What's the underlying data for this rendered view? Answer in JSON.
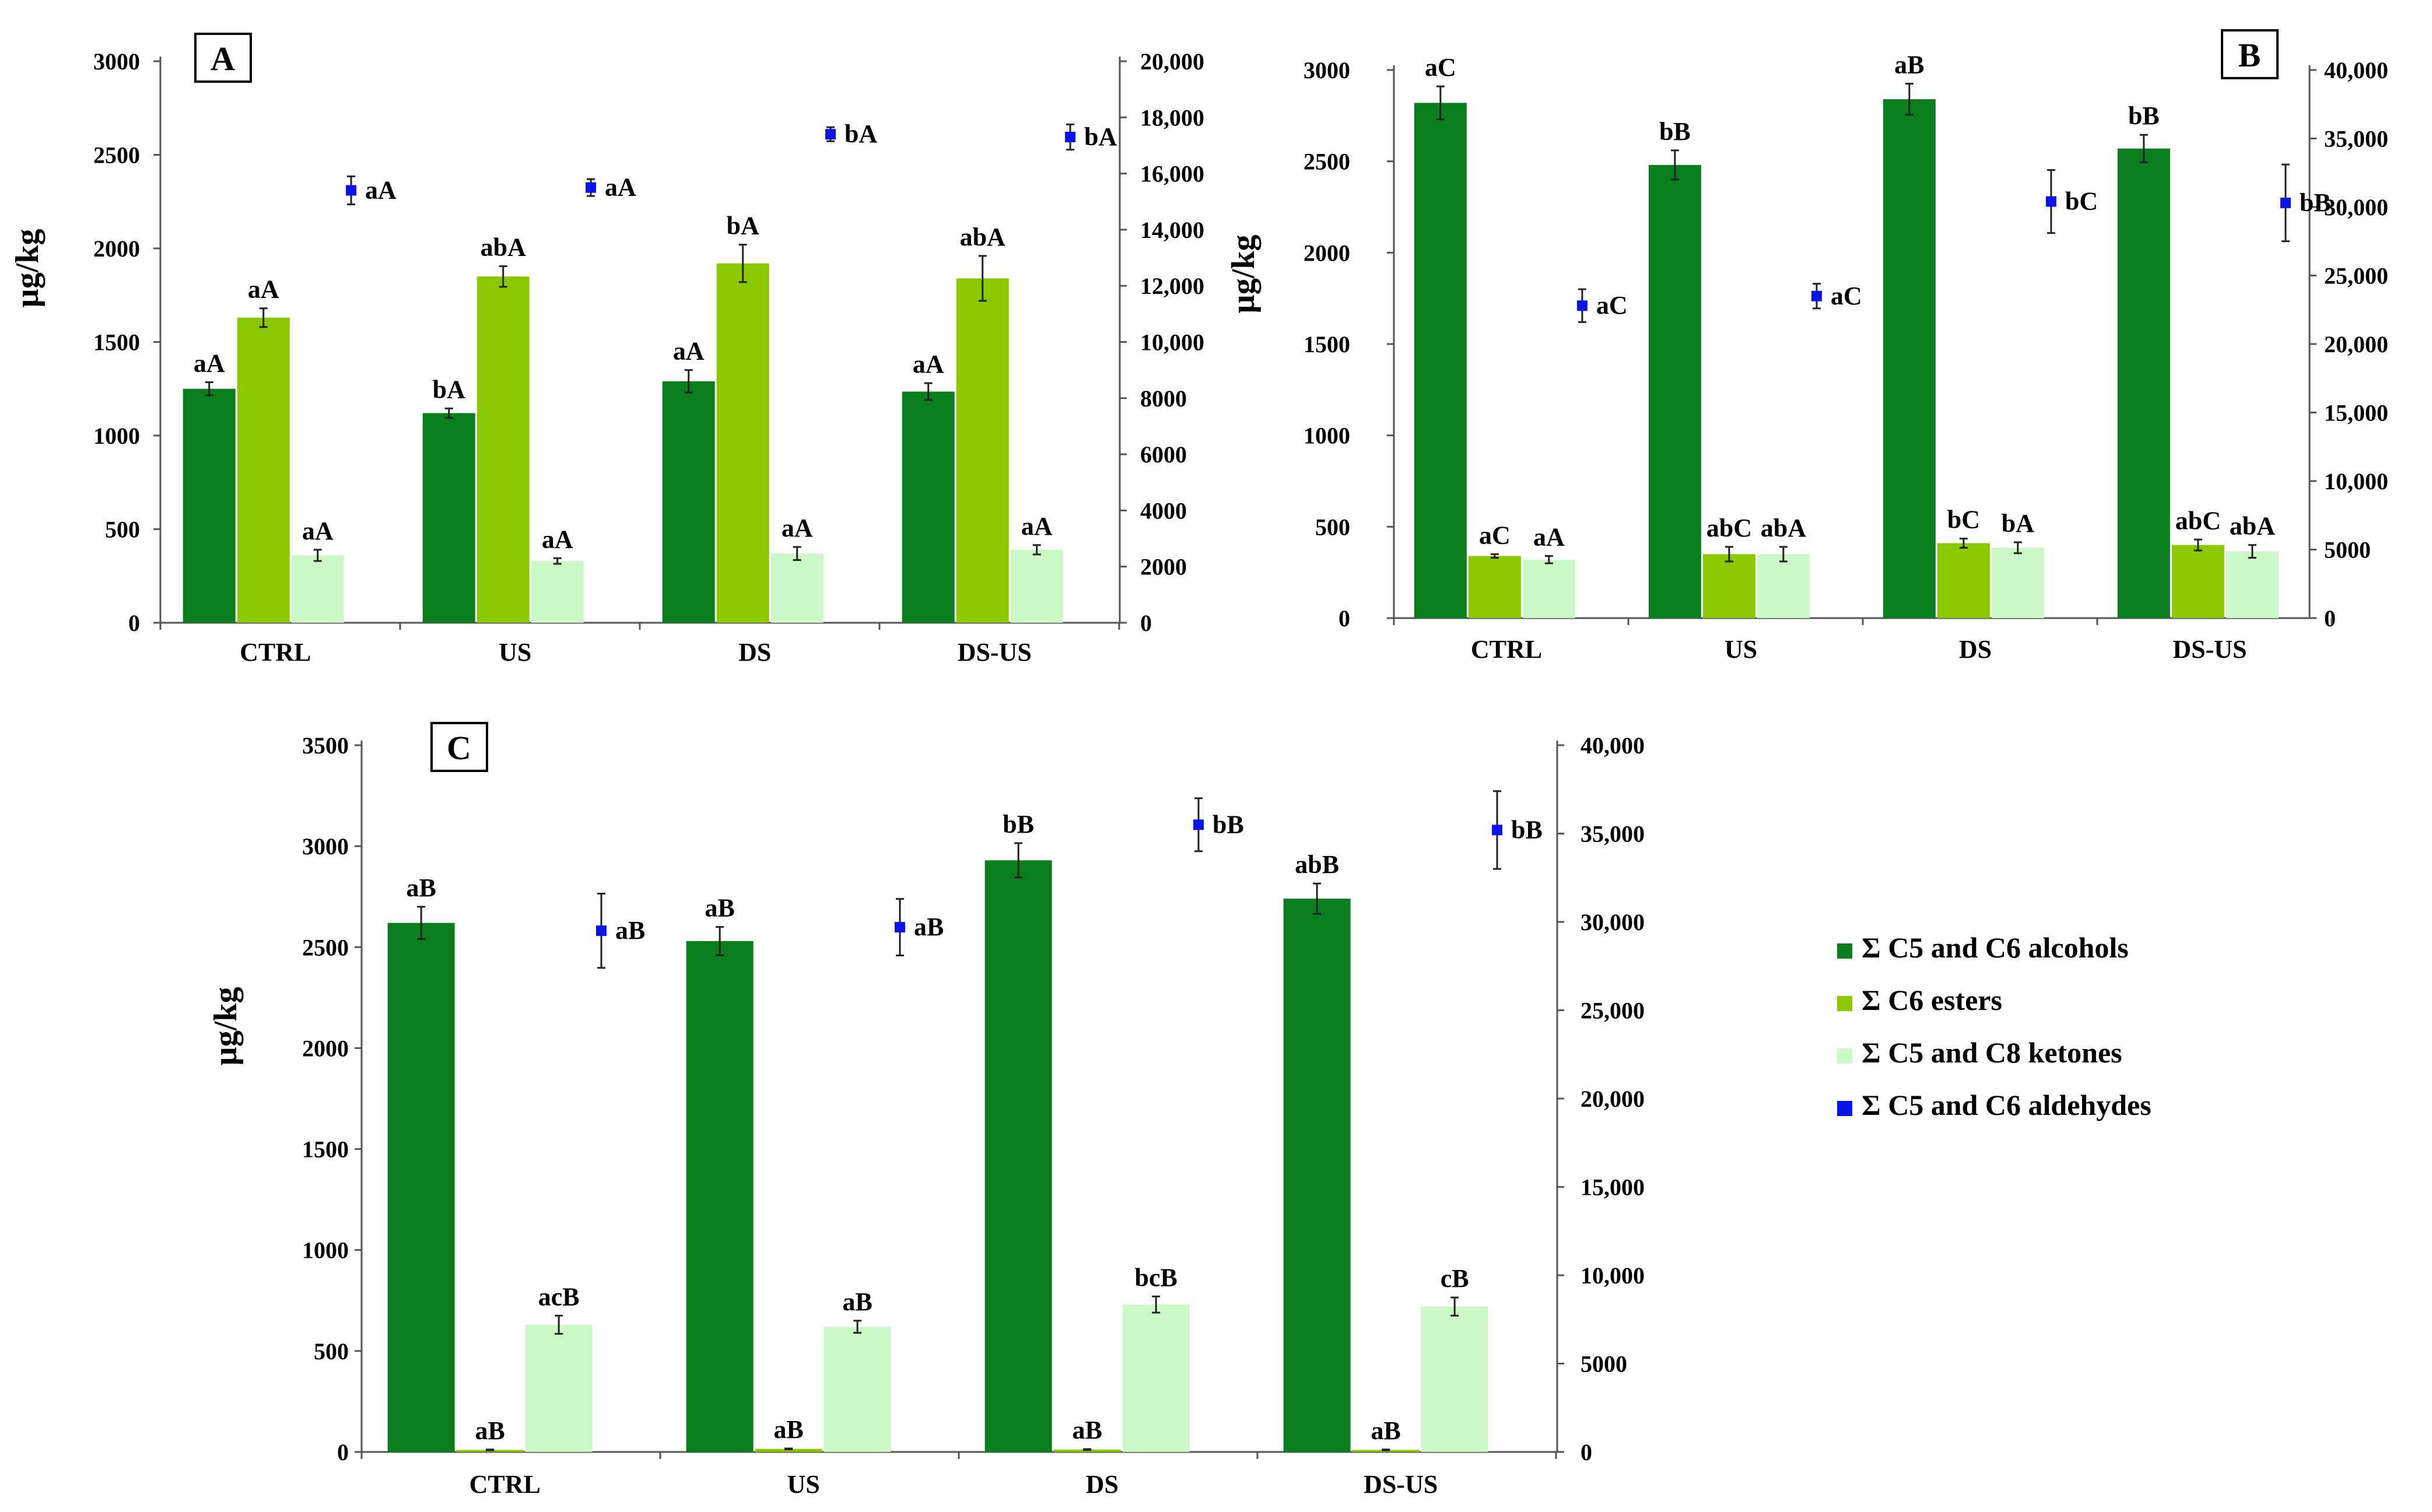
{
  "figure": {
    "legend": [
      {
        "label": "Σ C5 and C6 alcohols",
        "color": "#0a7d1e",
        "shape": "square"
      },
      {
        "label": "Σ C6 esters",
        "color": "#8cc800",
        "shape": "square"
      },
      {
        "label": "Σ C5 and C8 ketones",
        "color": "#ccf7c7",
        "shape": "square"
      },
      {
        "label": "Σ C5 and C6 aldehydes",
        "color": "#0a14e6",
        "shape": "square"
      }
    ]
  },
  "chart_data": [
    {
      "panel": "A",
      "type": "bar",
      "ylabel": "µg/kg",
      "categories": [
        "CTRL",
        "US",
        "DS",
        "DS-US"
      ],
      "ylim": [
        0,
        3000
      ],
      "yticks": [
        "0",
        "500",
        "1000",
        "1500",
        "2000",
        "2500",
        "3000"
      ],
      "yticks_values": [
        0,
        500,
        1000,
        1500,
        2000,
        2500,
        3000
      ],
      "y2lim": [
        0,
        20000
      ],
      "y2ticks": [
        "0",
        "2000",
        "4000",
        "6000",
        "8000",
        "10,000",
        "12,000",
        "14,000",
        "16,000",
        "18,000",
        "20,000"
      ],
      "y2ticks_values": [
        0,
        2000,
        4000,
        6000,
        8000,
        10000,
        12000,
        14000,
        16000,
        18000,
        20000
      ],
      "series": [
        {
          "name": "Σ C5 and C6 alcohols",
          "axis": "left",
          "kind": "bar",
          "values": [
            1250,
            1120,
            1290,
            1235
          ],
          "errors": [
            35,
            25,
            60,
            45
          ],
          "labels": [
            "aA",
            "bA",
            "aA",
            "aA"
          ]
        },
        {
          "name": "Σ C6 esters",
          "axis": "left",
          "kind": "bar",
          "values": [
            1630,
            1850,
            1920,
            1840
          ],
          "errors": [
            50,
            55,
            100,
            120
          ],
          "labels": [
            "aA",
            "abA",
            "bA",
            "abA"
          ]
        },
        {
          "name": "Σ C5 and C8 ketones",
          "axis": "left",
          "kind": "bar",
          "values": [
            360,
            330,
            370,
            390
          ],
          "errors": [
            30,
            15,
            35,
            25
          ],
          "labels": [
            "aA",
            "aA",
            "aA",
            "aA"
          ]
        },
        {
          "name": "Σ C5 and C6 aldehydes",
          "axis": "right",
          "kind": "point",
          "values": [
            15400,
            15500,
            17400,
            17300
          ],
          "errors": [
            500,
            300,
            250,
            450
          ],
          "labels": [
            "aA",
            "aA",
            "bA",
            "bA"
          ]
        }
      ]
    },
    {
      "panel": "B",
      "type": "bar",
      "ylabel": "µg/kg",
      "categories": [
        "CTRL",
        "US",
        "DS",
        "DS-US"
      ],
      "ylim": [
        0,
        3000
      ],
      "yticks": [
        "0",
        "500",
        "1000",
        "1500",
        "2000",
        "2500",
        "3000"
      ],
      "yticks_values": [
        0,
        500,
        1000,
        1500,
        2000,
        2500,
        3000
      ],
      "y2lim": [
        0,
        40000
      ],
      "y2ticks": [
        "0",
        "5000",
        "10,000",
        "15,000",
        "20,000",
        "25,000",
        "30,000",
        "35,000",
        "40,000"
      ],
      "y2ticks_values": [
        0,
        5000,
        10000,
        15000,
        20000,
        25000,
        30000,
        35000,
        40000
      ],
      "series": [
        {
          "name": "Σ C5 and C6 alcohols",
          "axis": "left",
          "kind": "bar",
          "values": [
            2820,
            2480,
            2840,
            2570
          ],
          "errors": [
            90,
            80,
            85,
            75
          ],
          "labels": [
            "aC",
            "bB",
            "aB",
            "bB"
          ]
        },
        {
          "name": "Σ C6 esters",
          "axis": "left",
          "kind": "bar",
          "values": [
            340,
            350,
            410,
            400
          ],
          "errors": [
            10,
            40,
            25,
            30
          ],
          "labels": [
            "aC",
            "abC",
            "bC",
            "abC"
          ]
        },
        {
          "name": "Σ C5 and C8 ketones",
          "axis": "left",
          "kind": "bar",
          "values": [
            320,
            350,
            385,
            365
          ],
          "errors": [
            20,
            40,
            30,
            35
          ],
          "labels": [
            "aA",
            "abA",
            "bA",
            "abA"
          ]
        },
        {
          "name": "Σ C5 and C6 aldehydes",
          "axis": "right",
          "kind": "point",
          "values": [
            22800,
            23500,
            30400,
            30300
          ],
          "errors": [
            1200,
            900,
            2300,
            2800
          ],
          "labels": [
            "aC",
            "aC",
            "bC",
            "bB"
          ]
        }
      ]
    },
    {
      "panel": "C",
      "type": "bar",
      "ylabel": "µg/kg",
      "categories": [
        "CTRL",
        "US",
        "DS",
        "DS-US"
      ],
      "ylim": [
        0,
        3500
      ],
      "yticks": [
        "0",
        "500",
        "1000",
        "1500",
        "2000",
        "2500",
        "3000",
        "3500"
      ],
      "yticks_values": [
        0,
        500,
        1000,
        1500,
        2000,
        2500,
        3000,
        3500
      ],
      "y2lim": [
        0,
        40000
      ],
      "y2ticks": [
        "0",
        "5000",
        "10,000",
        "15,000",
        "20,000",
        "25,000",
        "30,000",
        "35,000",
        "40,000"
      ],
      "y2ticks_values": [
        0,
        5000,
        10000,
        15000,
        20000,
        25000,
        30000,
        35000,
        40000
      ],
      "series": [
        {
          "name": "Σ C5 and C6 alcohols",
          "axis": "left",
          "kind": "bar",
          "values": [
            2620,
            2530,
            2930,
            2740
          ],
          "errors": [
            80,
            70,
            85,
            75
          ],
          "labels": [
            "aB",
            "aB",
            "bB",
            "abB"
          ]
        },
        {
          "name": "Σ C6 esters",
          "axis": "left",
          "kind": "bar",
          "values": [
            10,
            15,
            12,
            10
          ],
          "errors": [
            2,
            2,
            2,
            2
          ],
          "labels": [
            "aB",
            "aB",
            "aB",
            "aB"
          ]
        },
        {
          "name": "Σ C5 and C8 ketones",
          "axis": "left",
          "kind": "bar",
          "values": [
            630,
            620,
            730,
            720
          ],
          "errors": [
            45,
            30,
            40,
            45
          ],
          "labels": [
            "acB",
            "aB",
            "bcB",
            "cB"
          ]
        },
        {
          "name": "Σ C5 and C6 aldehydes",
          "axis": "right",
          "kind": "point",
          "values": [
            29500,
            29700,
            35500,
            35200
          ],
          "errors": [
            2100,
            1600,
            1500,
            2200
          ],
          "labels": [
            "aB",
            "aB",
            "bB",
            "bB"
          ]
        }
      ]
    }
  ]
}
